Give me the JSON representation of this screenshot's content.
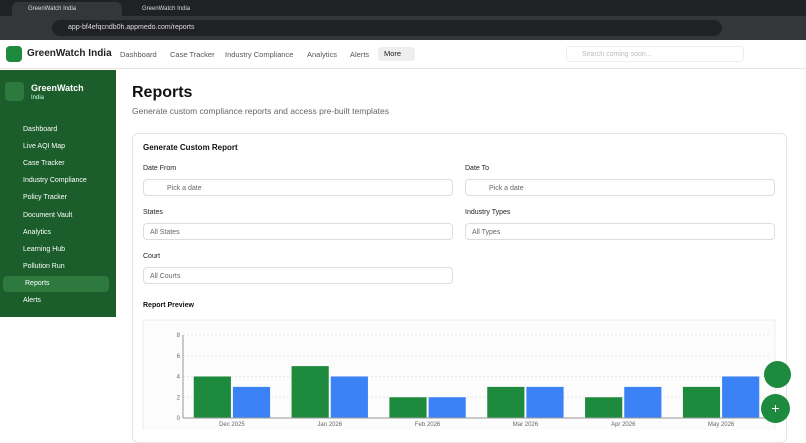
{
  "browser": {
    "tabs": [
      "GreenWatch India",
      "GreenWatch India"
    ],
    "url": "app-bf4efqcndb0h.appmedo.com/reports"
  },
  "header": {
    "brand": "GreenWatch India",
    "nav": [
      "Dashboard",
      "Case Tracker",
      "Industry Compliance",
      "Analytics",
      "Alerts"
    ],
    "more": "More",
    "search_placeholder": "Search coming soon..."
  },
  "sidebar": {
    "title": "GreenWatch",
    "subtitle": "India",
    "items": [
      "Dashboard",
      "Live AQI Map",
      "Case Tracker",
      "Industry Compliance",
      "Policy Tracker",
      "Document Vault",
      "Analytics",
      "Learning Hub",
      "Pollution Run",
      "Reports",
      "Alerts"
    ]
  },
  "page": {
    "title": "Reports",
    "subtitle": "Generate custom compliance reports and access pre-built templates"
  },
  "form": {
    "card_title": "Generate Custom Report",
    "fields": [
      {
        "label": "Date From",
        "placeholder": "Pick a date"
      },
      {
        "label": "Date To",
        "placeholder": "Pick a date"
      },
      {
        "label": "States",
        "placeholder": "All States"
      },
      {
        "label": "Industry Types",
        "placeholder": "All Types"
      },
      {
        "label": "Court",
        "placeholder": "All Courts"
      }
    ]
  },
  "preview": {
    "title": "Report Preview"
  },
  "chart_data": {
    "type": "bar",
    "categories": [
      "Dec 2025",
      "Jan 2026",
      "Feb 2026",
      "Mar 2026",
      "Apr 2026",
      "May 2026"
    ],
    "series": [
      {
        "color": "#1e8a3e",
        "values": [
          4,
          5,
          2,
          3,
          2,
          3
        ]
      },
      {
        "color": "#3b82f6",
        "values": [
          3,
          4,
          2,
          3,
          3,
          4
        ]
      }
    ],
    "ylim": [
      0,
      8
    ],
    "yticks": [
      0,
      2,
      4,
      6,
      8
    ],
    "grid": true
  }
}
